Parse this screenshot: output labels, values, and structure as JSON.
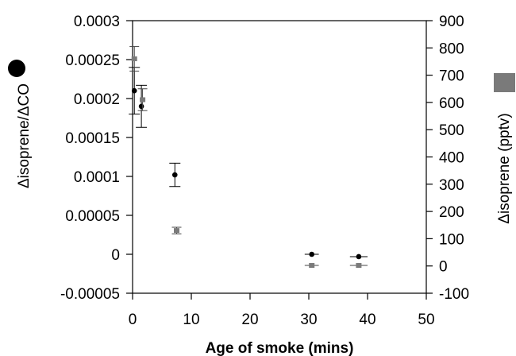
{
  "chart_data": {
    "type": "scatter",
    "xlabel": "Age of smoke (mins)",
    "ylabel_left": "Δisoprene/ΔCO",
    "ylabel_right": "Δisoprene (pptv)",
    "xlim": [
      0,
      50
    ],
    "ylim_left": [
      -5e-05,
      0.0003
    ],
    "ylim_right": [
      -100,
      900
    ],
    "x_ticks": [
      "0",
      "10",
      "20",
      "30",
      "40",
      "50"
    ],
    "y_left_ticks": [
      "-0.00005",
      "0",
      "0.00005",
      "0.0001",
      "0.00015",
      "0.0002",
      "0.00025",
      "0.0003"
    ],
    "y_right_ticks": [
      "-100",
      "0",
      "100",
      "200",
      "300",
      "400",
      "500",
      "600",
      "700",
      "800",
      "900"
    ],
    "grid": false,
    "legend": "axis-side markers",
    "series": [
      {
        "name": "Δisoprene/ΔCO",
        "axis": "left",
        "marker": "circle",
        "color": "#000000",
        "points": [
          {
            "x": 0.3,
            "y": 0.00021,
            "err": 3e-05
          },
          {
            "x": 1.5,
            "y": 0.00019,
            "err": 2.7e-05
          },
          {
            "x": 7.2,
            "y": 0.000102,
            "err": 1.5e-05
          },
          {
            "x": 30.5,
            "y": 0.0,
            "xerr": 1.2
          },
          {
            "x": 38.5,
            "y": -3e-06,
            "xerr": 1.5
          }
        ]
      },
      {
        "name": "Δisoprene (pptv)",
        "axis": "right",
        "marker": "square",
        "color": "#7a7a7a",
        "points": [
          {
            "x": 0.3,
            "y": 760,
            "err": 45
          },
          {
            "x": 1.7,
            "y": 610,
            "err": 40
          },
          {
            "x": 7.5,
            "y": 130,
            "err": 12
          },
          {
            "x": 30.5,
            "y": 2,
            "xerr": 1.2
          },
          {
            "x": 38.5,
            "y": 2,
            "xerr": 1.5
          }
        ]
      }
    ]
  }
}
